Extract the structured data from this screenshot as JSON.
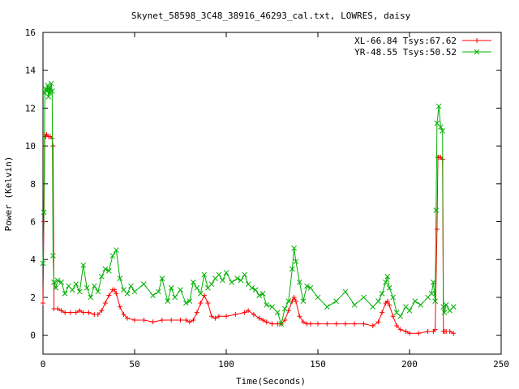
{
  "chart_data": {
    "type": "line",
    "title": "Skynet_58598_3C48_38916_46293_cal.txt, LOWRES, daisy",
    "xlabel": "Time(Seconds)",
    "ylabel": "Power (Kelvin)",
    "xlim": [
      0,
      250
    ],
    "ylim": [
      -1,
      16
    ],
    "xticks": [
      0,
      50,
      100,
      150,
      200,
      250
    ],
    "yticks": [
      0,
      2,
      4,
      6,
      8,
      10,
      12,
      14,
      16
    ],
    "xtick_labels": [
      "0",
      "50",
      "100",
      "150",
      "200",
      "250"
    ],
    "ytick_labels": [
      "0",
      "2",
      "4",
      "6",
      "8",
      "10",
      "12",
      "14",
      "16"
    ],
    "grid": false,
    "legend_position": "top-right",
    "series": [
      {
        "name": "XL-66.84 Tsys:67.62",
        "color": "#ff0000",
        "marker": "plus",
        "x": [
          0,
          0.5,
          1,
          1.5,
          2,
          3,
          4,
          5,
          5.5,
          6,
          8,
          10,
          12,
          15,
          18,
          20,
          22,
          25,
          28,
          30,
          32,
          34,
          36,
          38,
          39,
          40,
          42,
          44,
          46,
          50,
          55,
          60,
          65,
          70,
          75,
          78,
          80,
          82,
          84,
          86,
          88,
          90,
          92,
          94,
          96,
          100,
          105,
          110,
          112,
          115,
          118,
          120,
          122,
          125,
          128,
          130,
          132,
          134,
          136,
          137,
          138,
          140,
          142,
          144,
          146,
          150,
          155,
          160,
          165,
          170,
          175,
          180,
          183,
          185,
          187,
          188,
          189,
          191,
          193,
          195,
          198,
          200,
          205,
          210,
          213,
          214,
          215,
          215.5,
          216,
          217,
          218,
          218.5,
          219,
          220,
          222,
          224
        ],
        "y": [
          1.7,
          6.0,
          10.6,
          10.5,
          10.6,
          10.5,
          10.5,
          10.4,
          10.0,
          1.4,
          1.4,
          1.3,
          1.2,
          1.2,
          1.2,
          1.3,
          1.2,
          1.2,
          1.1,
          1.1,
          1.3,
          1.7,
          2.1,
          2.4,
          2.4,
          2.2,
          1.5,
          1.1,
          0.9,
          0.8,
          0.8,
          0.7,
          0.8,
          0.8,
          0.8,
          0.8,
          0.7,
          0.8,
          1.2,
          1.7,
          2.1,
          1.7,
          1.0,
          0.9,
          1.0,
          1.0,
          1.1,
          1.2,
          1.3,
          1.1,
          0.9,
          0.8,
          0.7,
          0.6,
          0.6,
          0.6,
          0.8,
          1.3,
          1.8,
          2.0,
          1.8,
          1.0,
          0.7,
          0.6,
          0.6,
          0.6,
          0.6,
          0.6,
          0.6,
          0.6,
          0.6,
          0.5,
          0.7,
          1.2,
          1.7,
          1.8,
          1.6,
          1.0,
          0.5,
          0.3,
          0.2,
          0.1,
          0.1,
          0.2,
          0.2,
          0.3,
          5.6,
          9.4,
          9.4,
          9.4,
          9.3,
          0.2,
          0.2,
          0.2,
          0.2,
          0.1
        ]
      },
      {
        "name": "YR-48.55 Tsys:50.52",
        "color": "#00b000",
        "marker": "cross",
        "x": [
          0,
          0.5,
          1,
          1.5,
          2,
          2.5,
          3,
          3.5,
          4,
          4.5,
          5,
          5.5,
          6,
          7,
          8,
          10,
          12,
          14,
          16,
          18,
          20,
          22,
          24,
          26,
          28,
          30,
          32,
          34,
          36,
          38,
          40,
          42,
          44,
          46,
          48,
          50,
          55,
          60,
          63,
          65,
          68,
          70,
          72,
          75,
          78,
          80,
          82,
          84,
          86,
          88,
          90,
          92,
          94,
          96,
          98,
          100,
          103,
          106,
          108,
          110,
          112,
          114,
          116,
          118,
          120,
          122,
          125,
          128,
          130,
          132,
          134,
          136,
          137,
          138,
          140,
          142,
          144,
          146,
          150,
          155,
          160,
          165,
          170,
          175,
          180,
          183,
          185,
          187,
          188,
          189,
          191,
          193,
          195,
          198,
          200,
          203,
          206,
          210,
          212,
          213,
          214,
          214.5,
          215,
          216,
          217,
          218,
          218.5,
          219,
          220,
          222,
          224
        ],
        "y": [
          3.8,
          6.5,
          12.8,
          13.0,
          12.9,
          13.2,
          12.6,
          13.1,
          12.8,
          13.3,
          12.9,
          4.2,
          2.8,
          2.5,
          2.9,
          2.8,
          2.2,
          2.6,
          2.4,
          2.7,
          2.3,
          3.7,
          2.5,
          2.0,
          2.6,
          2.3,
          3.1,
          3.5,
          3.4,
          4.2,
          4.5,
          3.0,
          2.4,
          2.2,
          2.6,
          2.3,
          2.7,
          2.1,
          2.3,
          3.0,
          1.8,
          2.5,
          2.0,
          2.4,
          1.7,
          1.8,
          2.8,
          2.5,
          2.2,
          3.2,
          2.5,
          2.7,
          3.0,
          3.2,
          2.9,
          3.3,
          2.8,
          3.0,
          2.9,
          3.2,
          2.7,
          2.5,
          2.4,
          2.1,
          2.2,
          1.6,
          1.5,
          1.2,
          0.6,
          1.4,
          1.8,
          3.5,
          4.6,
          3.9,
          2.8,
          1.8,
          2.6,
          2.5,
          2.0,
          1.5,
          1.8,
          2.3,
          1.6,
          2.0,
          1.5,
          1.8,
          2.2,
          2.8,
          3.1,
          2.5,
          2.0,
          1.2,
          1.0,
          1.5,
          1.3,
          1.8,
          1.6,
          2.0,
          2.2,
          2.8,
          1.8,
          6.6,
          11.2,
          12.1,
          11.0,
          10.8,
          1.5,
          1.2,
          1.6,
          1.3,
          1.5
        ]
      }
    ]
  }
}
